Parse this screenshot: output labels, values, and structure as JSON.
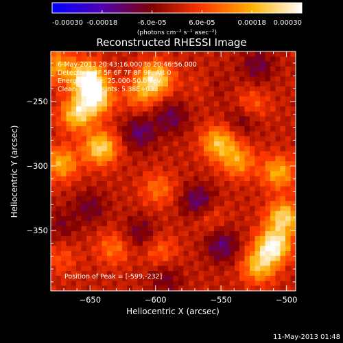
{
  "chart_data": {
    "type": "heatmap",
    "title": "Reconstructed RHESSI Image",
    "xlabel": "Heliocentric X (arcsec)",
    "ylabel": "Heliocentric Y (arcsec)",
    "xlim": [
      -680,
      -493
    ],
    "ylim": [
      -397,
      -211
    ],
    "xticks": [
      -650,
      -600,
      -550,
      -500
    ],
    "yticks": [
      -250,
      -300,
      -350
    ],
    "colorbar": {
      "range": [
        -0.0003,
        0.0003
      ],
      "tick_values": [
        -0.0003,
        -0.00018,
        -6e-05,
        6e-05,
        0.00018,
        0.0003
      ],
      "tick_labels": [
        "-0.00030",
        "-0.00018",
        "-6.0e-05",
        "6.0e-05",
        "0.00018",
        "0.00030"
      ],
      "units": "(photons cm⁻² s⁻¹ asec⁻²)",
      "colormap": [
        "#0000ff",
        "#5000b4",
        "#800000",
        "#ff3800",
        "#ffb000",
        "#ffffff"
      ]
    },
    "annotations": {
      "time_range": "6-May-2013 20:43:16.000 to 20:46:56.000",
      "detectors": "Detectors: 3F 5F 6F 7F 8F 9F, Att 0",
      "energy": "Energy Range: 25.000-50.0 keV",
      "clean": "Clean    Total counts: 5.38E+03",
      "peak": "Position of Peak = [-599,-232]"
    },
    "pixel_grid": {
      "nx": 48,
      "ny": 48
    },
    "blobs": [
      {
        "x": -652,
        "y": -232,
        "value": 0.0003
      },
      {
        "x": -646,
        "y": -247,
        "value": 0.00027
      },
      {
        "x": -660,
        "y": -260,
        "value": 0.00022
      },
      {
        "x": -642,
        "y": -286,
        "value": 0.00024
      },
      {
        "x": -672,
        "y": -298,
        "value": 0.00018
      },
      {
        "x": -675,
        "y": -222,
        "value": 0.00016
      },
      {
        "x": -600,
        "y": -232,
        "value": 0.00025
      },
      {
        "x": -612,
        "y": -244,
        "value": 0.00012
      },
      {
        "x": -552,
        "y": -282,
        "value": 0.0002
      },
      {
        "x": -537,
        "y": -296,
        "value": 0.00016
      },
      {
        "x": -506,
        "y": -305,
        "value": 0.00018
      },
      {
        "x": -502,
        "y": -340,
        "value": 0.00024
      },
      {
        "x": -510,
        "y": -362,
        "value": 0.0003
      },
      {
        "x": -521,
        "y": -378,
        "value": 0.0002
      },
      {
        "x": -562,
        "y": -238,
        "value": 0.0001
      },
      {
        "x": -527,
        "y": -254,
        "value": 0.00012
      },
      {
        "x": -598,
        "y": -318,
        "value": 0.00011
      },
      {
        "x": -560,
        "y": -337,
        "value": 8e-05
      },
      {
        "x": -632,
        "y": -364,
        "value": 0.00011
      },
      {
        "x": -596,
        "y": -366,
        "value": 9e-05
      },
      {
        "x": -672,
        "y": -372,
        "value": 7e-05
      },
      {
        "x": -612,
        "y": -274,
        "value": -0.00013
      },
      {
        "x": -588,
        "y": -262,
        "value": -0.00011
      },
      {
        "x": -567,
        "y": -328,
        "value": -0.00016
      },
      {
        "x": -558,
        "y": -238,
        "value": -0.0001
      },
      {
        "x": -650,
        "y": -332,
        "value": -9e-05
      },
      {
        "x": -532,
        "y": -262,
        "value": -0.00011
      },
      {
        "x": -549,
        "y": -362,
        "value": -0.00013
      },
      {
        "x": -672,
        "y": -346,
        "value": -7e-05
      },
      {
        "x": -612,
        "y": -352,
        "value": -9e-05
      },
      {
        "x": -522,
        "y": -222,
        "value": -0.0001
      },
      {
        "x": -592,
        "y": -388,
        "value": -8e-05
      }
    ]
  },
  "footer": {
    "timestamp": "11-May-2013 01:48"
  }
}
